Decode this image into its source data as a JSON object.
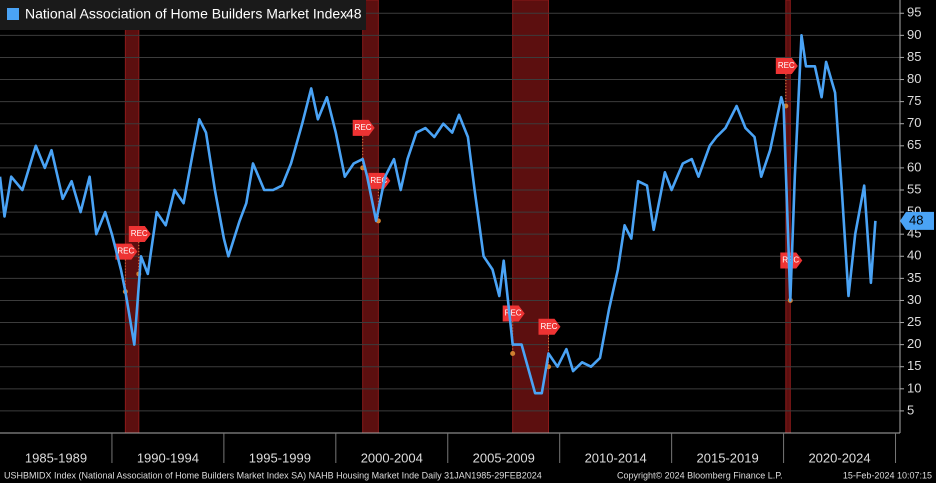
{
  "chart_data": {
    "type": "line",
    "series": [
      {
        "name": "National Association of Home Builders Market Index",
        "color": "#4aa3f5",
        "x": [
          1985.0,
          1985.2,
          1985.5,
          1986.0,
          1986.6,
          1987.0,
          1987.3,
          1987.8,
          1988.2,
          1988.6,
          1989.0,
          1989.3,
          1989.7,
          1990.0,
          1990.4,
          1990.6,
          1991.0,
          1991.3,
          1991.6,
          1992.0,
          1992.4,
          1992.8,
          1993.2,
          1993.6,
          1993.9,
          1994.2,
          1994.6,
          1995.0,
          1995.2,
          1995.7,
          1996.0,
          1996.3,
          1996.8,
          1997.2,
          1997.6,
          1998.0,
          1998.5,
          1998.9,
          1999.2,
          1999.6,
          2000.0,
          2000.4,
          2000.8,
          2001.2,
          2001.4,
          2001.8,
          2002.2,
          2002.6,
          2002.9,
          2003.2,
          2003.6,
          2004.0,
          2004.4,
          2004.8,
          2005.2,
          2005.5,
          2005.9,
          2006.2,
          2006.6,
          2007.0,
          2007.3,
          2007.5,
          2007.9,
          2008.3,
          2008.9,
          2009.2,
          2009.5,
          2009.9,
          2010.3,
          2010.6,
          2011.0,
          2011.4,
          2011.8,
          2012.2,
          2012.6,
          2012.9,
          2013.2,
          2013.5,
          2013.9,
          2014.2,
          2014.7,
          2015.0,
          2015.5,
          2015.9,
          2016.2,
          2016.7,
          2017.0,
          2017.4,
          2017.9,
          2018.3,
          2018.7,
          2019.0,
          2019.4,
          2019.9,
          2020.0,
          2020.3,
          2020.5,
          2020.8,
          2021.0,
          2021.4,
          2021.7,
          2021.9,
          2022.3,
          2022.6,
          2022.9,
          2023.2,
          2023.6,
          2023.9,
          2024.1
        ],
        "values": [
          58,
          49,
          58,
          55,
          65,
          60,
          64,
          53,
          57,
          50,
          58,
          45,
          50,
          45,
          37,
          32,
          20,
          40,
          36,
          50,
          47,
          55,
          52,
          63,
          71,
          68,
          55,
          44,
          40,
          48,
          52,
          61,
          55,
          55,
          56,
          61,
          70,
          78,
          71,
          76,
          68,
          58,
          61,
          62,
          58,
          48,
          58,
          62,
          55,
          62,
          68,
          69,
          67,
          70,
          68,
          72,
          67,
          55,
          40,
          37,
          31,
          39,
          20,
          20,
          9,
          9,
          18,
          15,
          19,
          14,
          16,
          15,
          17,
          28,
          37,
          47,
          44,
          57,
          56,
          46,
          59,
          55,
          61,
          62,
          58,
          65,
          67,
          69,
          74,
          69,
          67,
          58,
          64,
          76,
          74,
          30,
          58,
          90,
          83,
          83,
          76,
          84,
          77,
          55,
          31,
          45,
          56,
          34,
          48
        ]
      }
    ],
    "xlim": [
      1985,
      2025.2
    ],
    "xticks": [
      {
        "value": 1987.5,
        "label": "1985-1989"
      },
      {
        "value": 1992.5,
        "label": "1990-1994"
      },
      {
        "value": 1997.5,
        "label": "1995-1999"
      },
      {
        "value": 2002.5,
        "label": "2000-2004"
      },
      {
        "value": 2007.5,
        "label": "2005-2009"
      },
      {
        "value": 2012.5,
        "label": "2010-2014"
      },
      {
        "value": 2017.5,
        "label": "2015-2019"
      },
      {
        "value": 2022.5,
        "label": "2020-2024"
      }
    ],
    "ylim": [
      0,
      98
    ],
    "yticks": [
      5,
      10,
      15,
      20,
      25,
      30,
      35,
      40,
      45,
      50,
      55,
      60,
      65,
      70,
      75,
      80,
      85,
      90,
      95
    ],
    "grid": true,
    "recession_color": "#5c0f0f",
    "recessions": [
      [
        1990.6,
        1991.2
      ],
      [
        2001.2,
        2001.9
      ],
      [
        2007.9,
        2009.5
      ],
      [
        2020.1,
        2020.3
      ]
    ],
    "markers": [
      {
        "label": "REC",
        "x": 1990.6,
        "y": 32
      },
      {
        "label": "REC",
        "x": 1991.2,
        "y": 36
      },
      {
        "label": "REC",
        "x": 2001.2,
        "y": 60
      },
      {
        "label": "REC",
        "x": 2001.9,
        "y": 48
      },
      {
        "label": "REC",
        "x": 2007.9,
        "y": 18
      },
      {
        "label": "REC",
        "x": 2009.5,
        "y": 15
      },
      {
        "label": "REC",
        "x": 2020.1,
        "y": 74
      },
      {
        "label": "REC",
        "x": 2020.3,
        "y": 30
      }
    ],
    "footer": {
      "source": "USHBMIDX Index (National Association of Home Builders Market Index SA) NAHB Housing Market Inde  Daily 31JAN1985-29FEB2024",
      "copyright": "Copyright© 2024 Bloomberg Finance L.P.",
      "timestamp": "15-Feb-2024 10:07:15"
    }
  }
}
